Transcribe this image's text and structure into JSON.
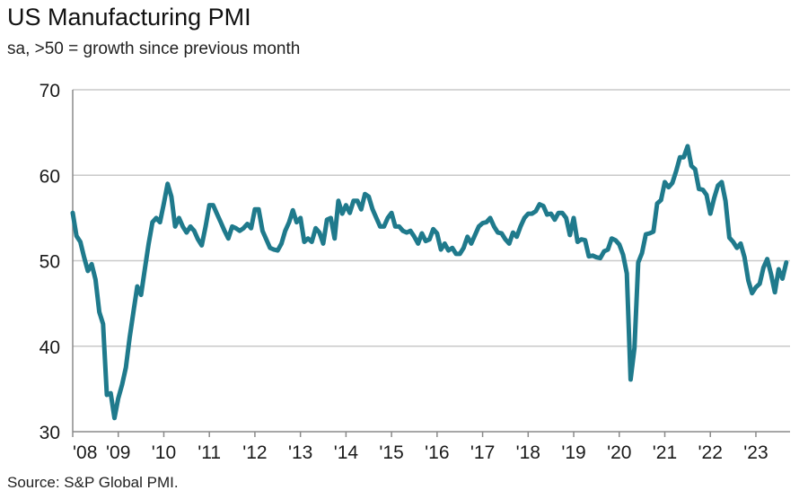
{
  "chart_data": {
    "type": "line",
    "title": "US Manufacturing PMI",
    "subtitle": "sa, >50 = growth since previous month",
    "source": "Source: S&P Global PMI.",
    "xlabel": "",
    "ylabel": "",
    "ylim": [
      30,
      70
    ],
    "yticks": [
      "30",
      "40",
      "50",
      "60",
      "70"
    ],
    "xticks": [
      "'08",
      "'09",
      "'10",
      "'11",
      "'12",
      "'13",
      "'14",
      "'15",
      "'16",
      "'17",
      "'18",
      "'19",
      "'20",
      "'21",
      "'22",
      "'23"
    ],
    "grid": "horizontal",
    "color": "#1f7a8c",
    "series": [
      {
        "x_start": "2008-01",
        "values": [
          55.6,
          52.9,
          52.2,
          50.4,
          48.8,
          49.6,
          47.8,
          44.0,
          42.6,
          34.3,
          34.5,
          31.6,
          33.9,
          35.5,
          37.5,
          41.0,
          44.0,
          47.0,
          46.0,
          49.0,
          52.0,
          54.5,
          55.0,
          54.5,
          56.7,
          59.0,
          57.5,
          54.0,
          55.0,
          54.0,
          53.3,
          54.0,
          53.5,
          52.5,
          51.8,
          54.0,
          56.5,
          56.5,
          55.5,
          54.5,
          53.5,
          52.6,
          54.0,
          53.8,
          53.5,
          53.8,
          54.3,
          53.8,
          56.0,
          56.0,
          53.5,
          52.5,
          51.5,
          51.3,
          51.2,
          52.0,
          53.5,
          54.5,
          55.9,
          54.5,
          55.0,
          52.2,
          52.6,
          52.2,
          53.8,
          53.3,
          52.0,
          54.8,
          55.0,
          52.6,
          57.0,
          55.5,
          56.5,
          55.6,
          57.0,
          57.0,
          56.0,
          57.8,
          57.5,
          56.0,
          55.0,
          54.0,
          54.0,
          55.0,
          55.6,
          54.0,
          54.0,
          53.5,
          53.3,
          53.5,
          52.8,
          52.0,
          53.2,
          52.3,
          52.5,
          53.7,
          53.2,
          51.3,
          52.0,
          51.2,
          51.5,
          50.8,
          50.8,
          51.5,
          52.8,
          52.0,
          53.0,
          54.0,
          54.4,
          54.5,
          55.0,
          54.0,
          53.3,
          53.2,
          52.5,
          52.0,
          53.3,
          52.8,
          54.0,
          55.0,
          55.5,
          55.5,
          55.8,
          56.6,
          56.4,
          55.4,
          55.5,
          54.8,
          55.6,
          55.6,
          55.0,
          53.0,
          55.0,
          52.2,
          52.5,
          52.4,
          50.5,
          50.6,
          50.4,
          50.3,
          51.1,
          51.3,
          52.6,
          52.4,
          51.9,
          50.7,
          48.5,
          36.1,
          39.8,
          49.8,
          50.9,
          53.1,
          53.2,
          53.4,
          56.7,
          57.1,
          59.2,
          58.6,
          59.1,
          60.5,
          62.1,
          62.1,
          63.4,
          61.1,
          60.7,
          58.4,
          58.3,
          57.7,
          55.5,
          57.3,
          58.8,
          59.2,
          57.0,
          52.7,
          52.2,
          51.5,
          52.0,
          50.4,
          47.7,
          46.2,
          46.9,
          47.3,
          49.2,
          50.2,
          48.4,
          46.3,
          49.0,
          47.9,
          49.8
        ]
      }
    ]
  }
}
